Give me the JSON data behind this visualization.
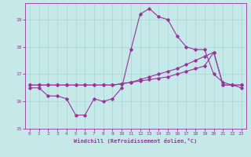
{
  "xlabel": "Windchill (Refroidissement éolien,°C)",
  "xlim": [
    -0.5,
    23.5
  ],
  "ylim": [
    15,
    19.6
  ],
  "yticks": [
    15,
    16,
    17,
    18,
    19
  ],
  "xticks": [
    0,
    1,
    2,
    3,
    4,
    5,
    6,
    7,
    8,
    9,
    10,
    11,
    12,
    13,
    14,
    15,
    16,
    17,
    18,
    19,
    20,
    21,
    22,
    23
  ],
  "bg_color": "#c5e8e8",
  "line_color": "#993399",
  "grid_color": "#aad4d4",
  "lines": [
    {
      "x": [
        0,
        1,
        2,
        3,
        4,
        5,
        6,
        7,
        8,
        9,
        10,
        11,
        12,
        13,
        14,
        15,
        16,
        17,
        18,
        19,
        20,
        21,
        22,
        23
      ],
      "y": [
        16.5,
        16.5,
        16.2,
        16.2,
        16.1,
        15.5,
        15.5,
        16.1,
        16.0,
        16.1,
        16.5,
        17.9,
        19.2,
        19.4,
        19.1,
        19.0,
        18.4,
        18.0,
        17.9,
        17.9,
        17.0,
        16.7,
        16.6,
        16.5
      ]
    },
    {
      "x": [
        0,
        1,
        2,
        3,
        4,
        5,
        6,
        7,
        8,
        9,
        10,
        11,
        12,
        13,
        14,
        15,
        16,
        17,
        18,
        19,
        20,
        21,
        22,
        23
      ],
      "y": [
        16.6,
        16.6,
        16.6,
        16.6,
        16.6,
        16.6,
        16.6,
        16.6,
        16.6,
        16.6,
        16.65,
        16.7,
        16.75,
        16.8,
        16.85,
        16.9,
        17.0,
        17.1,
        17.2,
        17.3,
        17.8,
        16.6,
        16.6,
        16.6
      ]
    },
    {
      "x": [
        0,
        1,
        2,
        3,
        4,
        5,
        6,
        7,
        8,
        9,
        10,
        11,
        12,
        13,
        14,
        15,
        16,
        17,
        18,
        19,
        20,
        21,
        22,
        23
      ],
      "y": [
        16.6,
        16.6,
        16.6,
        16.6,
        16.6,
        16.6,
        16.6,
        16.6,
        16.6,
        16.6,
        16.65,
        16.7,
        16.8,
        16.9,
        17.0,
        17.1,
        17.2,
        17.35,
        17.5,
        17.65,
        17.8,
        16.6,
        16.6,
        16.6
      ]
    }
  ]
}
